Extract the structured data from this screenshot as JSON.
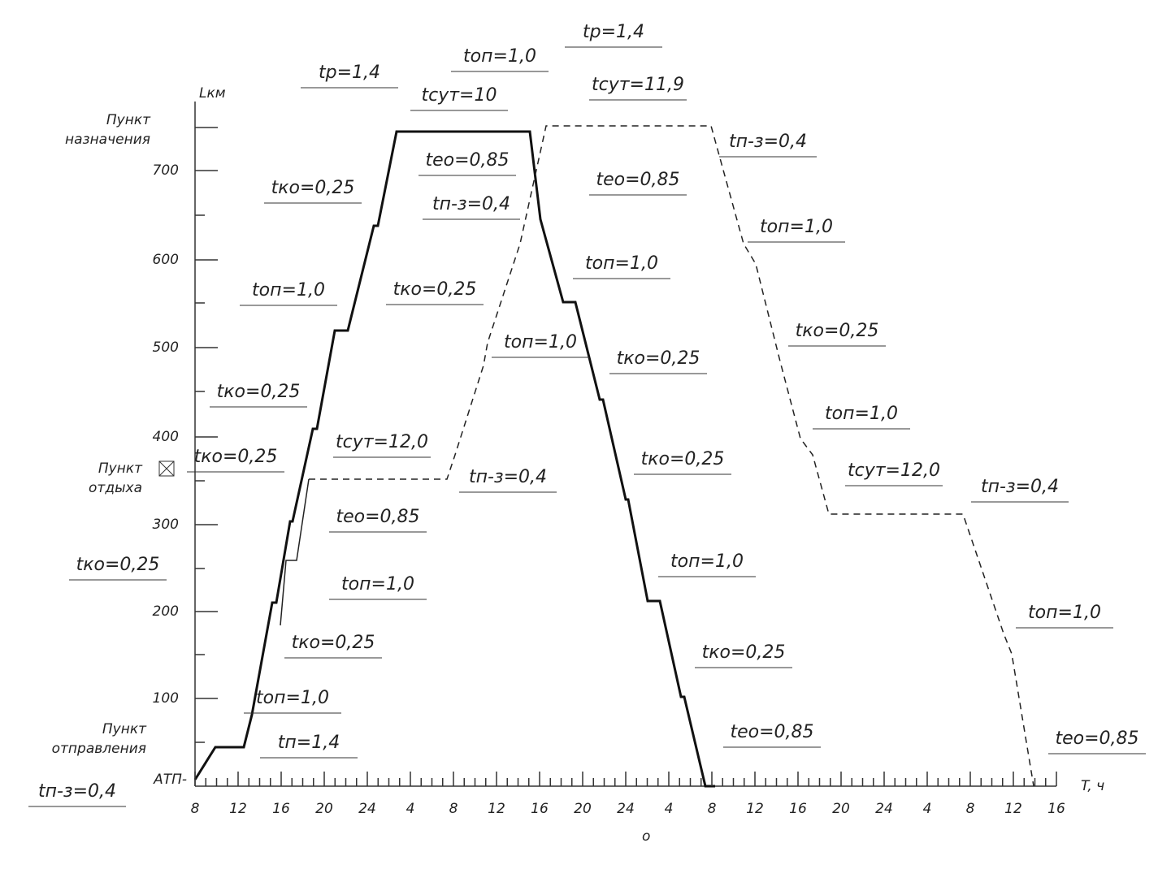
{
  "axis": {
    "y_title": "Lкм",
    "x_title": "T, ч",
    "y_ticks": [
      "700",
      "600",
      "500",
      "400",
      "300",
      "200",
      "100"
    ],
    "x_ticks": [
      "8",
      "12",
      "16",
      "20",
      "24",
      "4",
      "8",
      "12",
      "16",
      "20",
      "24",
      "4",
      "8",
      "12",
      "16",
      "20",
      "24",
      "4",
      "8",
      "12",
      "16"
    ],
    "points": [
      "Пункт назначения",
      "Пункт отдыха",
      "Пункт отправления",
      "АТП-"
    ],
    "bottom_mark": "o"
  },
  "annotations": [
    "tр=1,4",
    "tоп=1,0",
    "tр=1,4",
    "tсут=10",
    "tсут=11,9",
    "tп-з=0,4",
    "tко=0,25",
    "tео=0,85",
    "tео=0,85",
    "tп-з=0,4",
    "tоп=1,0",
    "tоп=1,0",
    "tоп=1,0",
    "tко=0,25",
    "tоп=1,0",
    "tко=0,25",
    "tко=0,25",
    "tко=0,25",
    "tоп=1,0",
    "tсут=12,0",
    "tко=0,25",
    "tко=0,25",
    "tп-з=0,4",
    "tсут=12,0",
    "tп-з=0,4",
    "tео=0,85",
    "tко=0,25",
    "tоп=1,0",
    "tоп=1,0",
    "tоп=1,0",
    "tко=0,25",
    "tко=0,25",
    "tоп=1,0",
    "tео=0,85",
    "tп=1,4",
    "tео=0,85",
    "tп-з=0,4"
  ]
}
